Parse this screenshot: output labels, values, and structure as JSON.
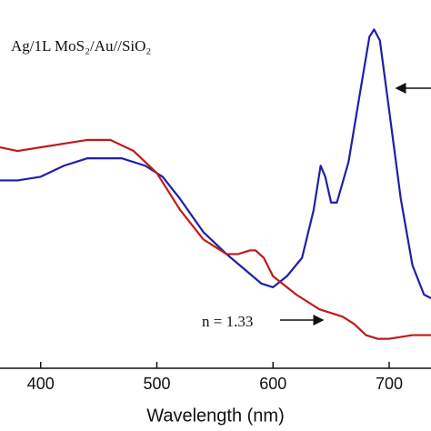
{
  "chart_data": {
    "type": "line",
    "annotations": [
      "Ag/1L MoS₂/Au//SiO₂",
      "n = 1.33"
    ],
    "xlabel": "Wavelength (nm)",
    "xlim": [
      365,
      736
    ],
    "xticks": [
      400,
      500,
      600,
      700
    ],
    "ylim": [
      0,
      1
    ],
    "series": [
      {
        "color": "#1f1fa8",
        "x": [
          365,
          380,
          400,
          420,
          440,
          455,
          470,
          490,
          505,
          520,
          540,
          560,
          575,
          590,
          600,
          612,
          625,
          635,
          641,
          645,
          650,
          655,
          665,
          675,
          683,
          687,
          692,
          700,
          710,
          720,
          730,
          736
        ],
        "values": [
          0.51,
          0.51,
          0.52,
          0.55,
          0.57,
          0.57,
          0.57,
          0.55,
          0.52,
          0.46,
          0.37,
          0.31,
          0.27,
          0.23,
          0.22,
          0.25,
          0.3,
          0.43,
          0.55,
          0.52,
          0.45,
          0.45,
          0.56,
          0.75,
          0.9,
          0.92,
          0.89,
          0.7,
          0.46,
          0.28,
          0.2,
          0.19
        ]
      },
      {
        "color": "#c01a1a",
        "x": [
          365,
          380,
          400,
          420,
          440,
          450,
          460,
          480,
          500,
          520,
          540,
          560,
          570,
          580,
          585,
          592,
          600,
          620,
          640,
          660,
          670,
          680,
          690,
          700,
          720,
          736
        ],
        "values": [
          0.6,
          0.59,
          0.6,
          0.61,
          0.62,
          0.62,
          0.62,
          0.59,
          0.53,
          0.43,
          0.35,
          0.31,
          0.31,
          0.32,
          0.32,
          0.3,
          0.25,
          0.2,
          0.16,
          0.14,
          0.12,
          0.09,
          0.08,
          0.08,
          0.09,
          0.09
        ]
      }
    ]
  }
}
